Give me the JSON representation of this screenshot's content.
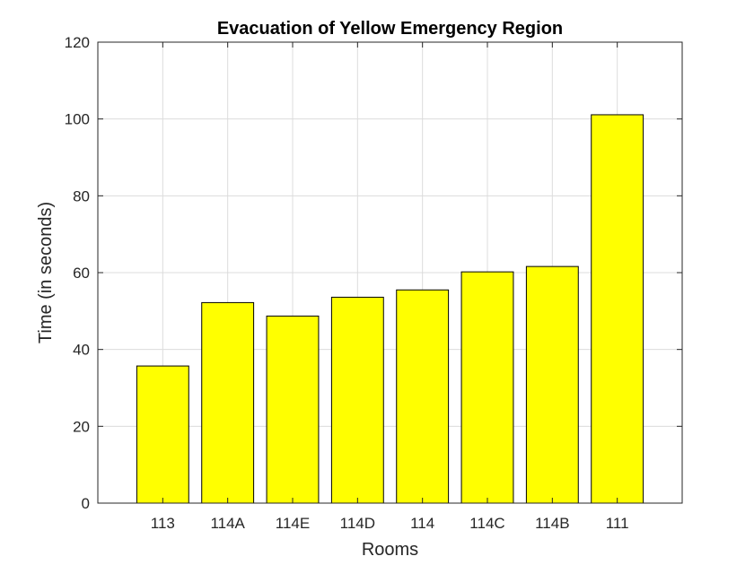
{
  "chart_data": {
    "type": "bar",
    "title": "Evacuation of Yellow Emergency Region",
    "xlabel": "Rooms",
    "ylabel": "Time (in seconds)",
    "categories": [
      "113",
      "114A",
      "114E",
      "114D",
      "114",
      "114C",
      "114B",
      "111"
    ],
    "values": [
      35.7,
      52.2,
      48.7,
      53.6,
      55.5,
      60.2,
      61.6,
      101.1
    ],
    "ylim": [
      0,
      120
    ],
    "yticks": [
      0,
      20,
      40,
      60,
      80,
      100,
      120
    ],
    "grid": true,
    "legend": "none",
    "bar_color": "#ffff00"
  }
}
